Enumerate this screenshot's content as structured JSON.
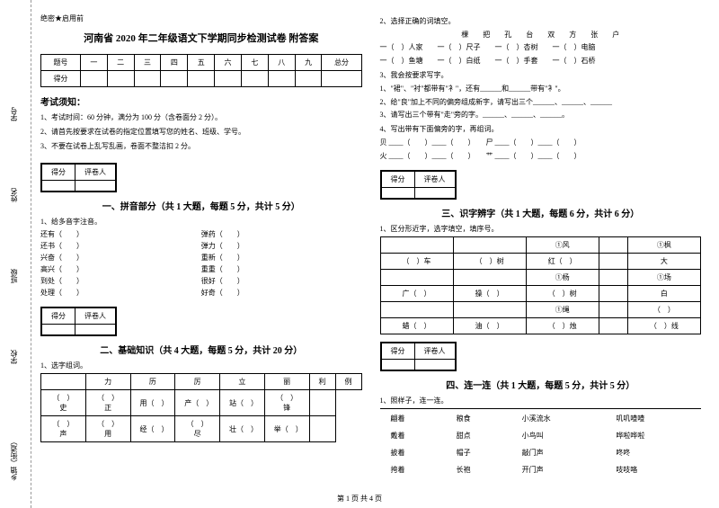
{
  "leftMargin": {
    "labels": [
      "乡镇（街道）",
      "学校",
      "班级",
      "姓名",
      "学号"
    ],
    "sideText": [
      "题",
      "名",
      "本",
      "内",
      "线",
      "封"
    ]
  },
  "header": {
    "secret": "绝密★启用前",
    "title": "河南省 2020 年二年级语文下学期同步检测试卷 附答案"
  },
  "scoreTable": {
    "headers": [
      "题号",
      "一",
      "二",
      "三",
      "四",
      "五",
      "六",
      "七",
      "八",
      "九",
      "总分"
    ],
    "row2": "得分"
  },
  "notice": {
    "title": "考试须知：",
    "items": [
      "1、考试时间：60 分钟，满分为 100 分（含卷面分 2 分）。",
      "2、请首先按要求在试卷的指定位置填写您的姓名、班级、学号。",
      "3、不要在试卷上乱写乱画，卷面不整洁扣 2 分。"
    ]
  },
  "sectionBox": {
    "c1": "得分",
    "c2": "评卷人"
  },
  "section1": {
    "title": "一、拼音部分（共 1 大题，每题 5 分，共计 5 分）",
    "q1": "1、给多音字注音。",
    "pairs": [
      [
        "还有（　　）",
        "弹药（　　）"
      ],
      [
        "还书（　　）",
        "弹力（　　）"
      ],
      [
        "兴奋（　　）",
        "重新（　　）"
      ],
      [
        "高兴（　　）",
        "重重（　　）"
      ],
      [
        "到处（　　）",
        "很好（　　）"
      ],
      [
        "处理（　　）",
        "好奇（　　）"
      ]
    ]
  },
  "section2": {
    "title": "二、基础知识（共 4 大题，每题 5 分，共计 20 分）",
    "q1": "1、选字组词。",
    "t1h": [
      "",
      "力",
      "历",
      "厉",
      "立",
      "丽",
      "利",
      "例"
    ],
    "t1r1": [
      "（　）史",
      "（　）正",
      "用（　）",
      "产（　）",
      "站（　）",
      "（　）锋",
      ""
    ],
    "t1r2": [
      "（　）声",
      "（　）用",
      "经（　）",
      "（　）尽",
      "壮（　）",
      "举（　）",
      ""
    ]
  },
  "right": {
    "q2": "2、选择正确的词填空。",
    "q2chars": "棵　　把　　孔　　台　　双　　方　　张　　户",
    "q2lines": [
      "一（　）人家　　一（　）尺子　　一（　）杏树　　一（　）电脑",
      "一（　）鱼塘　　一（　）白纸　　一（　）手套　　一（　）石桥"
    ],
    "q3": "3、我会按要求写字。",
    "q3lines": [
      "1、\"裙\"、\"衬\"都带有\"衤\"，还有______和______带有\"衤\"。",
      "2、给\"良\"加上不同的偏旁组成新字，请写出三个______、______、______",
      "3、请写出三个带有\"走\"旁的字。______、______、______。"
    ],
    "q4": "4、写出带有下面偏旁的字，再组词。",
    "q4rows": [
      [
        "贝",
        "尸"
      ],
      [
        "火",
        "艹"
      ]
    ],
    "section3": {
      "title": "三、识字辨字（共 1 大题，每题 6 分，共计 6 分）",
      "q1": "1、区分形近字，选字填空，填序号。",
      "grid": [
        [
          "",
          "",
          "①风",
          "",
          "①枫"
        ],
        [
          "（　）车",
          "（　）树",
          "红（　）",
          "",
          "大"
        ],
        [
          "",
          "",
          "①杨",
          "",
          "①场"
        ],
        [
          "广（　）",
          "操（　）",
          "（　）树",
          "",
          "白"
        ],
        [
          "",
          "",
          "①绳",
          "",
          "（　）"
        ],
        [
          "蜡（　）",
          "油（　）",
          "（　）烛",
          "",
          "（　）线"
        ]
      ]
    },
    "section4": {
      "title": "四、连一连（共 1 大题，每题 5 分，共计 5 分）",
      "q1": "1、照样子，连一连。",
      "cols": [
        [
          "翩着",
          "戴着",
          "披着",
          "挎着"
        ],
        [
          "粮食",
          "甜点",
          "帽子",
          "长袍"
        ],
        [
          "小溪流水",
          "小鸟叫",
          "敲门声",
          "开门声"
        ],
        [
          "叽叽喳喳",
          "哗啦哗啦",
          "咚咚",
          "吱吱咯"
        ]
      ]
    }
  },
  "footer": "第 1 页 共 4 页"
}
